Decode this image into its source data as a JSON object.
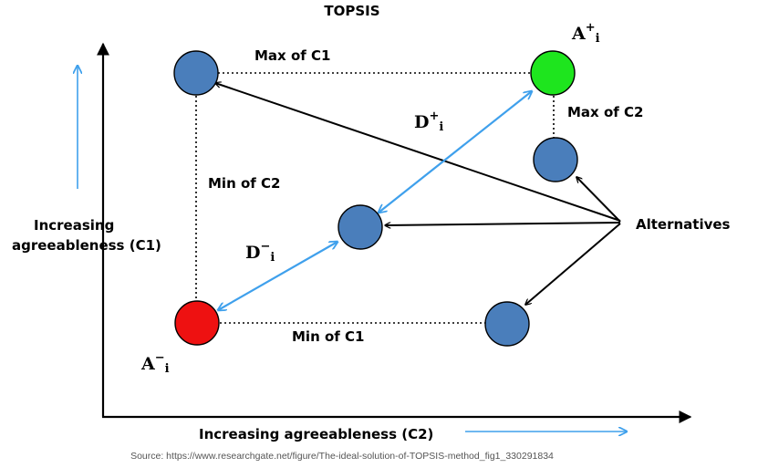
{
  "title": "TOPSIS",
  "ideal_positive_label": {
    "base": "A",
    "sup": "+",
    "sub": "i"
  },
  "ideal_negative_label": {
    "base": "A",
    "sup": "−",
    "sub": "i"
  },
  "distance_positive_label": {
    "base": "D",
    "sup": "+",
    "sub": "i"
  },
  "distance_negative_label": {
    "base": "D",
    "sup": "−",
    "sub": "i"
  },
  "labels": {
    "max_c1": "Max of C1",
    "max_c2": "Max of C2",
    "min_c2": "Min of C2",
    "min_c1": "Min of C1",
    "alternatives": "Alternatives",
    "y_axis_line1": "Increasing",
    "y_axis_line2": "agreeableness (C1)",
    "x_axis": "Increasing agreeableness (C2)"
  },
  "source": "Source: https://www.researchgate.net/figure/The-ideal-solution-of-TOPSIS-method_fig1_330291834",
  "colors": {
    "alternative_fill": "#4a7ebb",
    "ideal_positive_fill": "#1ee51e",
    "ideal_negative_fill": "#ee1111",
    "distance_arrow": "#3fa0ec",
    "axis": "#000000"
  }
}
